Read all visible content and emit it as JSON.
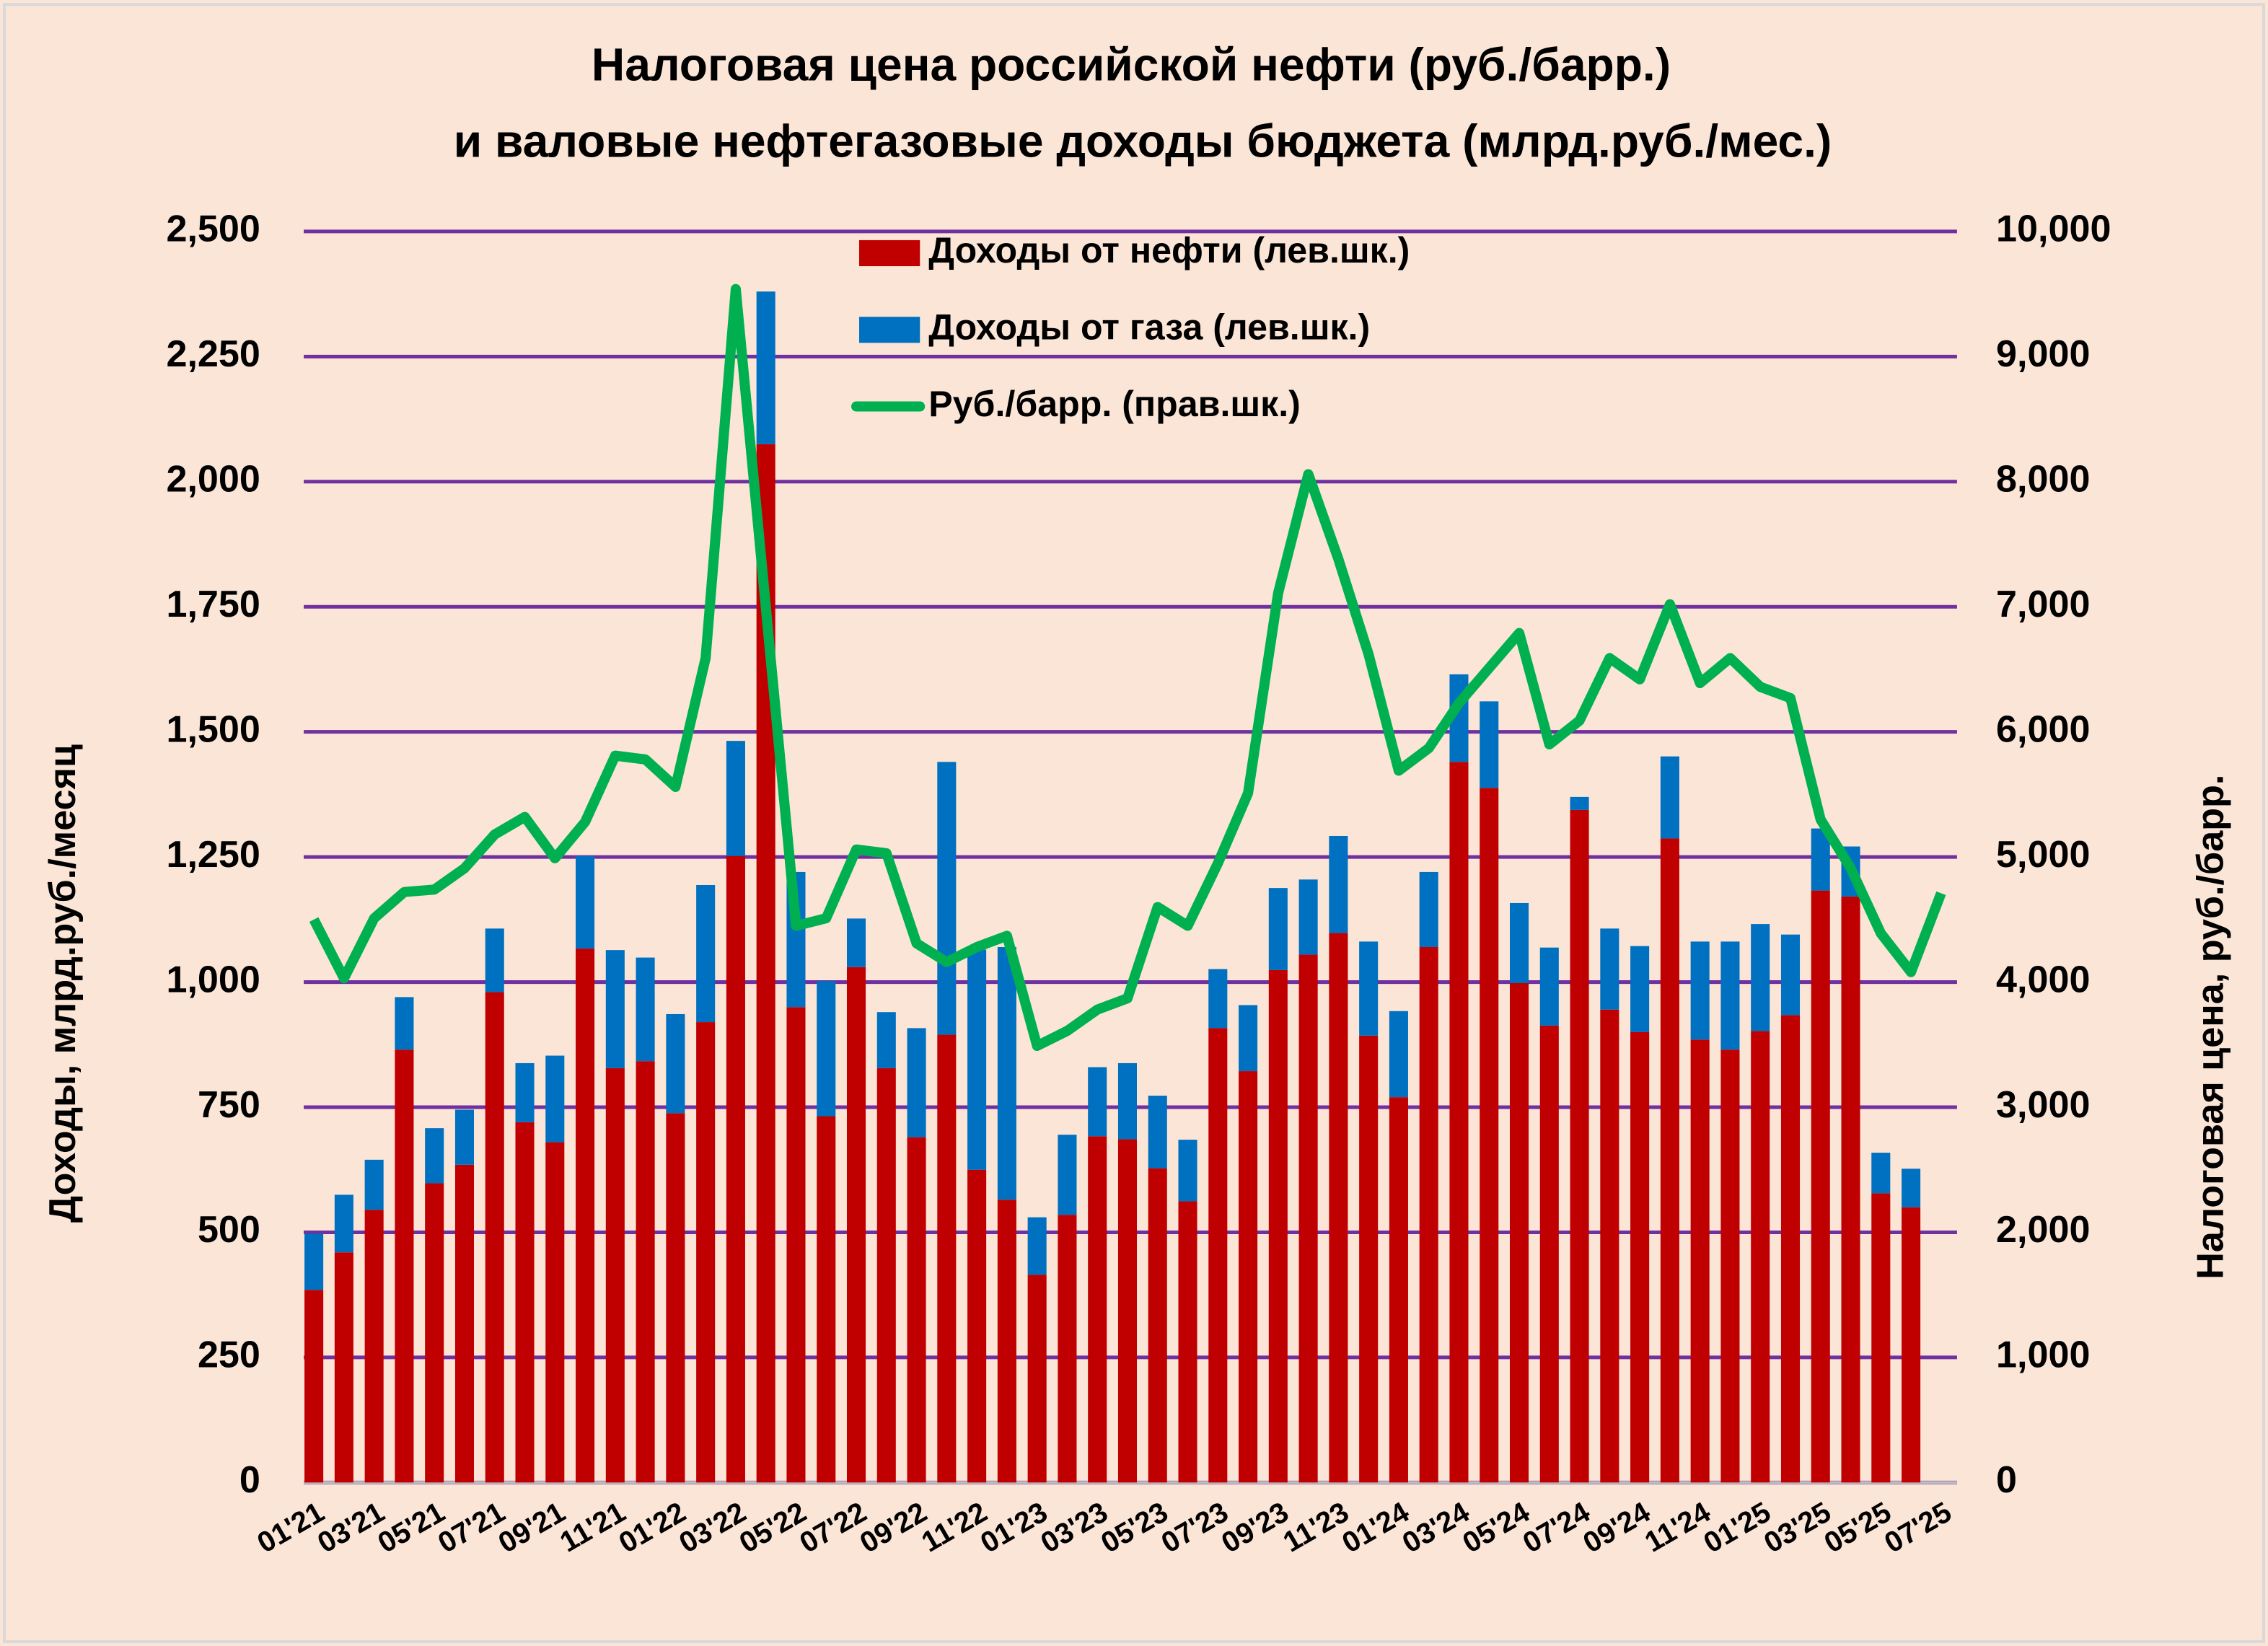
{
  "chart_data": {
    "type": "bar",
    "stacked": true,
    "title": [
      "Налоговая цена российской нефти (руб./барр.)",
      "и валовые нефтегазовые доходы бюджета (млрд.руб./мес.)"
    ],
    "y_label": "Доходы, млрд.руб./месяц",
    "y2_label": "Налоговая цена, руб./барр.",
    "categories": [
      "01'21",
      null,
      "03'21",
      null,
      "05'21",
      null,
      "07'21",
      null,
      "09'21",
      null,
      "11'21",
      null,
      "01'22",
      null,
      "03'22",
      null,
      "05'22",
      null,
      "07'22",
      null,
      "09'22",
      null,
      "11'22",
      null,
      "01'23",
      null,
      "03'23",
      null,
      "05'23",
      null,
      "07'23",
      null,
      "09'23",
      null,
      "11'23",
      null,
      "01'24",
      null,
      "03'24",
      null,
      "05'24",
      null,
      "07'24",
      null,
      "09'24",
      null,
      "11'24",
      null,
      "01'25",
      null,
      "03'25",
      null,
      "05'25",
      null,
      "07'25"
    ],
    "series": [
      {
        "name": "Доходы от нефти (лев.шк.)",
        "color": "#c00000",
        "values": [
          385,
          460,
          545,
          865,
          598,
          635,
          980,
          720,
          680,
          1067,
          828,
          842,
          738,
          920,
          1252,
          2075,
          950,
          732,
          1030,
          828,
          690,
          895,
          625,
          565,
          415,
          535,
          692,
          686,
          628,
          562,
          908,
          822,
          1024,
          1055,
          1098,
          893,
          770,
          1070,
          1440,
          1388,
          998,
          913,
          1344,
          945,
          900,
          1287,
          885,
          865,
          902,
          934,
          1183,
          1171,
          578,
          550,
          null
        ]
      },
      {
        "name": "Доходы от газа (лев.шк.)",
        "color": "#0070c0",
        "values": [
          112,
          115,
          100,
          105,
          110,
          110,
          127,
          118,
          173,
          185,
          236,
          207,
          198,
          274,
          230,
          305,
          270,
          270,
          97,
          112,
          218,
          545,
          440,
          505,
          115,
          160,
          138,
          152,
          145,
          123,
          118,
          132,
          164,
          150,
          194,
          188,
          172,
          150,
          175,
          173,
          160,
          156,
          26,
          162,
          172,
          164,
          196,
          216,
          214,
          161,
          124,
          100,
          81,
          77,
          null
        ]
      },
      {
        "name": "Руб./барр. (прав.шк.)",
        "color": "#00b050",
        "type": "line",
        "axis": "y2",
        "values": [
          4500,
          4030,
          4510,
          4720,
          4740,
          4910,
          5180,
          5320,
          4990,
          5280,
          5810,
          5780,
          5560,
          6590,
          9540,
          6990,
          4450,
          4510,
          5060,
          5030,
          4310,
          4160,
          4280,
          4370,
          3490,
          3610,
          3780,
          3870,
          4600,
          4450,
          4950,
          5510,
          7110,
          8060,
          7380,
          6620,
          5690,
          5870,
          6230,
          6510,
          6790,
          5900,
          6090,
          6590,
          6420,
          7020,
          6390,
          6590,
          6360,
          6270,
          5300,
          4910,
          4390,
          4080,
          4710
        ]
      }
    ],
    "ylim": [
      0,
      2500
    ],
    "yticks": [
      0,
      250,
      500,
      750,
      {
        "value": 1000,
        "label": "1,000"
      },
      {
        "value": 1250,
        "label": "1,250"
      },
      {
        "value": 1500,
        "label": "1,500"
      },
      {
        "value": 1750,
        "label": "1,750"
      },
      {
        "value": 2000,
        "label": "2,000"
      },
      {
        "value": 2250,
        "label": "2,250"
      },
      {
        "value": 2500,
        "label": "2,500"
      }
    ],
    "y2lim": [
      0,
      10000
    ],
    "y2ticks": [
      0,
      {
        "value": 1000,
        "label": "1,000"
      },
      {
        "value": 2000,
        "label": "2,000"
      },
      {
        "value": 3000,
        "label": "3,000"
      },
      {
        "value": 4000,
        "label": "4,000"
      },
      {
        "value": 5000,
        "label": "5,000"
      },
      {
        "value": 6000,
        "label": "6,000"
      },
      {
        "value": 7000,
        "label": "7,000"
      },
      {
        "value": 8000,
        "label": "8,000"
      },
      {
        "value": 9000,
        "label": "9,000"
      },
      {
        "value": 10000,
        "label": "10,000"
      }
    ],
    "grid": true,
    "grid_color": "#7030a0",
    "legend": "top"
  }
}
